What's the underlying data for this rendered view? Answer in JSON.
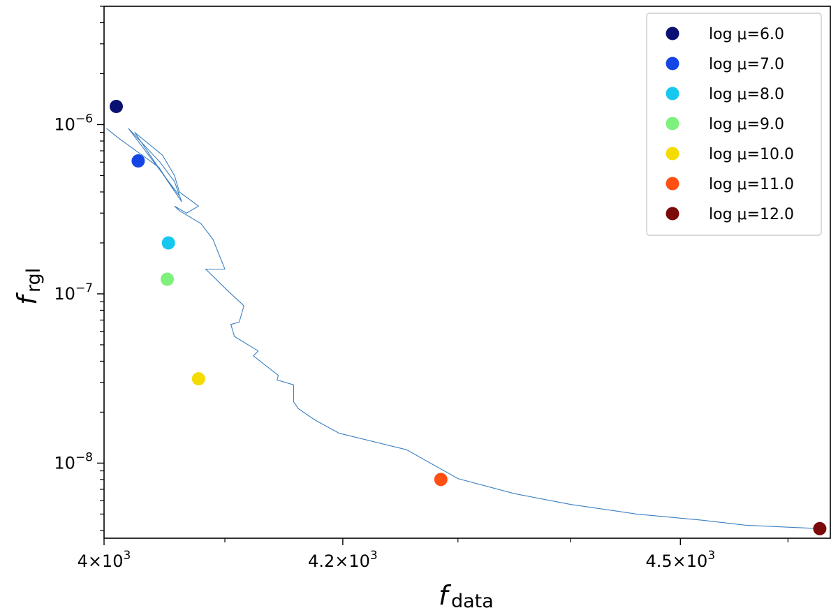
{
  "chart_data": {
    "type": "line",
    "title": "",
    "xlabel": {
      "main": "f",
      "sub": "data"
    },
    "ylabel": {
      "main": "f",
      "sub": "rgl"
    },
    "xscale": "log",
    "yscale": "log",
    "xlim": [
      4000,
      4640
    ],
    "ylim": [
      3.6e-09,
      5e-06
    ],
    "grid": false,
    "legend_position": "top-right",
    "x_ticks": [
      {
        "value": 4000,
        "mantissa": "4",
        "exponent": "3"
      },
      {
        "value": 4200,
        "mantissa": "4.2",
        "exponent": "3"
      },
      {
        "value": 4500,
        "mantissa": "4.5",
        "exponent": "3"
      }
    ],
    "y_ticks": [
      {
        "value": 1e-06,
        "base": "10",
        "exponent": "−6"
      },
      {
        "value": 1e-07,
        "base": "10",
        "exponent": "−7"
      },
      {
        "value": 1e-08,
        "base": "10",
        "exponent": "−8"
      }
    ],
    "line_color": "#3a7fc0",
    "path": {
      "x": [
        4002,
        4012,
        4030,
        4045,
        4052,
        4062,
        4020,
        4046,
        4058,
        4064,
        4025,
        4048,
        4058,
        4062,
        4078,
        4068,
        4058,
        4062,
        4080,
        4090,
        4100,
        4084,
        4102,
        4116,
        4112,
        4105,
        4108,
        4128,
        4124,
        4145,
        4144,
        4158,
        4158,
        4162,
        4176,
        4197,
        4255,
        4300,
        4350,
        4400,
        4460,
        4520,
        4560,
        4630
      ],
      "y": [
        9.5e-07,
        8.3e-07,
        6.7e-07,
        5.6e-07,
        4.7e-07,
        3.8e-07,
        9.5e-07,
        6e-07,
        4.6e-07,
        3.5e-07,
        9e-07,
        6.6e-07,
        5e-07,
        4e-07,
        3.3e-07,
        3e-07,
        3.3e-07,
        3.1e-07,
        2.6e-07,
        2.1e-07,
        1.4e-07,
        1.4e-07,
        1.05e-07,
        8.5e-08,
        6.8e-08,
        6.6e-08,
        5.6e-08,
        4.6e-08,
        4.3e-08,
        3.3e-08,
        3.1e-08,
        2.9e-08,
        2.3e-08,
        2.1e-08,
        1.8e-08,
        1.5e-08,
        1.2e-08,
        8.1e-09,
        6.6e-09,
        5.7e-09,
        5e-09,
        4.6e-09,
        4.3e-09,
        4.1e-09
      ]
    },
    "points": [
      {
        "label": "log μ=6.0",
        "x": 4010,
        "y": 1.28e-06,
        "color": "#0a1172"
      },
      {
        "label": "log μ=7.0",
        "x": 4028,
        "y": 6.1e-07,
        "color": "#1446e6"
      },
      {
        "label": "log μ=8.0",
        "x": 4053,
        "y": 2e-07,
        "color": "#16c8f0"
      },
      {
        "label": "log μ=9.0",
        "x": 4052,
        "y": 1.22e-07,
        "color": "#7ef07c"
      },
      {
        "label": "log μ=10.0",
        "x": 4078,
        "y": 3.15e-08,
        "color": "#f5dc00"
      },
      {
        "label": "log μ=11.0",
        "x": 4285,
        "y": 8e-09,
        "color": "#ff4f12"
      },
      {
        "label": "log μ=12.0",
        "x": 4630,
        "y": 4.1e-09,
        "color": "#7d0a0a"
      }
    ]
  }
}
